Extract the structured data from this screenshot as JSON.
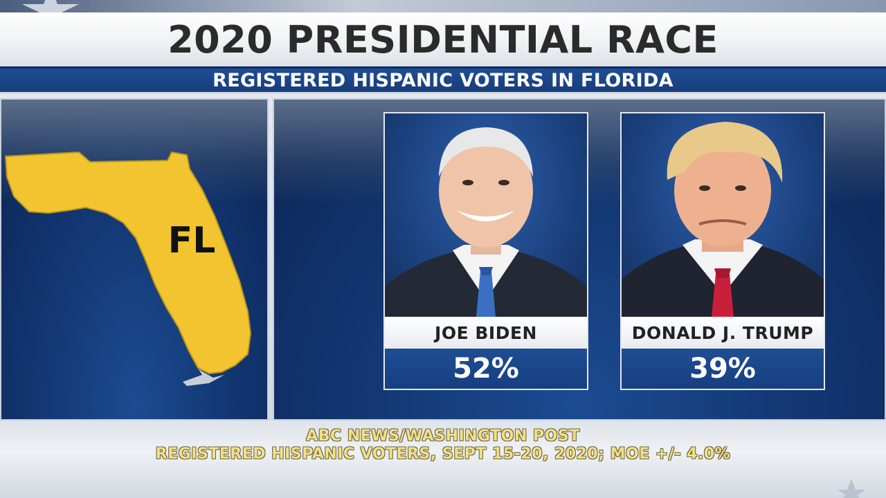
{
  "header": {
    "title": "2020 PRESIDENTIAL RACE",
    "subtitle": "REGISTERED HISPANIC VOTERS IN FLORIDA"
  },
  "map": {
    "state_label": "FL",
    "state_color": "#f2c530",
    "background_color": "#143b78"
  },
  "candidates": [
    {
      "name": "JOE BIDEN",
      "percent": "52%",
      "tie_color": "#3a6fc4"
    },
    {
      "name": "DONALD J. TRUMP",
      "percent": "39%",
      "tie_color": "#c8203a"
    }
  ],
  "chart_data": {
    "type": "bar",
    "categories": [
      "JOE BIDEN",
      "DONALD J. TRUMP"
    ],
    "values": [
      52,
      39
    ],
    "title": "2020 PRESIDENTIAL RACE",
    "subtitle": "REGISTERED HISPANIC VOTERS IN FLORIDA",
    "unit": "%"
  },
  "footer": {
    "source_line_1": "ABC NEWS/WASHINGTON POST",
    "source_line_2": "REGISTERED HISPANIC VOTERS, SEPT 15-20, 2020; MOE +/- 4.0%"
  },
  "colors": {
    "accent_blue": "#1f4d94",
    "footer_text": "#f2e08a"
  }
}
